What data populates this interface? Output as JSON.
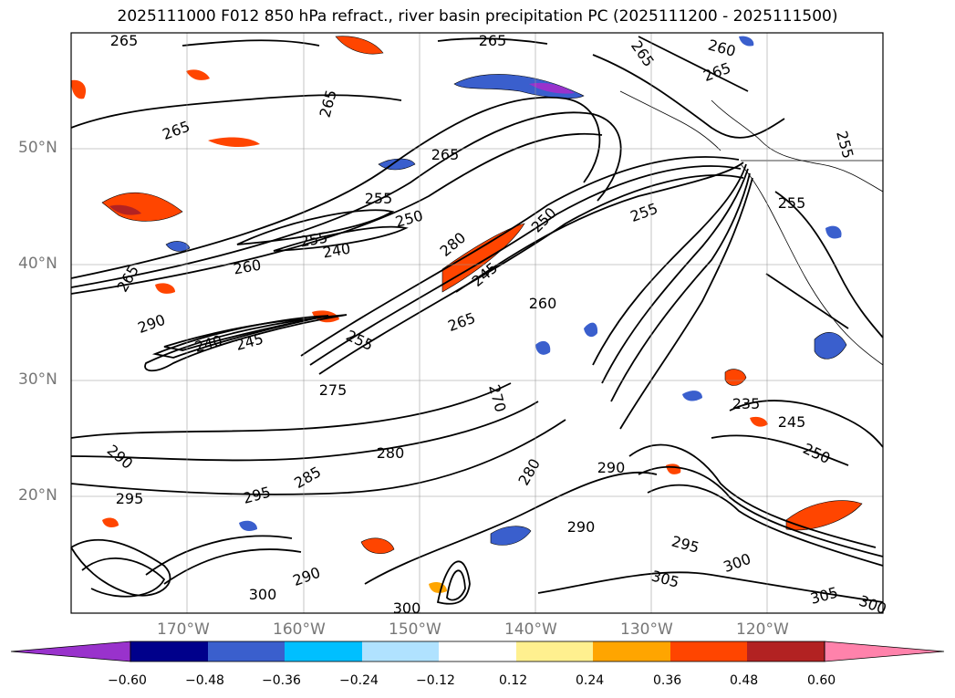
{
  "title": "2025111000 F012 850 hPa refract., river basin precipitation PC (2025111200 - 2025111500)",
  "map": {
    "lat_labels": [
      "50°N",
      "40°N",
      "30°N",
      "20°N"
    ],
    "lon_labels": [
      "170°W",
      "160°W",
      "150°W",
      "140°W",
      "130°W",
      "120°W"
    ],
    "contour_labels": [
      {
        "text": "265"
      },
      {
        "text": "265"
      },
      {
        "text": "265"
      },
      {
        "text": "260"
      },
      {
        "text": "265"
      },
      {
        "text": "265"
      },
      {
        "text": "265"
      },
      {
        "text": "265"
      },
      {
        "text": "255"
      },
      {
        "text": "250"
      },
      {
        "text": "255"
      },
      {
        "text": "240"
      },
      {
        "text": "260"
      },
      {
        "text": "265"
      },
      {
        "text": "290"
      },
      {
        "text": "250"
      },
      {
        "text": "280"
      },
      {
        "text": "255"
      },
      {
        "text": "245"
      },
      {
        "text": "240"
      },
      {
        "text": "245"
      },
      {
        "text": "255"
      },
      {
        "text": "265"
      },
      {
        "text": "260"
      },
      {
        "text": "275"
      },
      {
        "text": "270"
      },
      {
        "text": "280"
      },
      {
        "text": "290"
      },
      {
        "text": "295"
      },
      {
        "text": "295"
      },
      {
        "text": "285"
      },
      {
        "text": "280"
      },
      {
        "text": "290"
      },
      {
        "text": "290"
      },
      {
        "text": "295"
      },
      {
        "text": "305"
      },
      {
        "text": "300"
      },
      {
        "text": "305"
      },
      {
        "text": "300"
      },
      {
        "text": "290"
      },
      {
        "text": "300"
      },
      {
        "text": "300"
      },
      {
        "text": "235"
      },
      {
        "text": "245"
      },
      {
        "text": "250"
      },
      {
        "text": "255"
      },
      {
        "text": "255"
      }
    ]
  },
  "colorbar": {
    "colors": [
      "#9932cc",
      "#00008b",
      "#3a5fcd",
      "#00bfff",
      "#b0e2ff",
      "#ffffff",
      "#fff08f",
      "#ffa500",
      "#ff4500",
      "#b22222",
      "#ff82ab"
    ],
    "tick_labels": [
      "−0.60",
      "−0.48",
      "−0.36",
      "−0.24",
      "−0.12",
      "0.12",
      "0.24",
      "0.36",
      "0.48",
      "0.60"
    ]
  }
}
